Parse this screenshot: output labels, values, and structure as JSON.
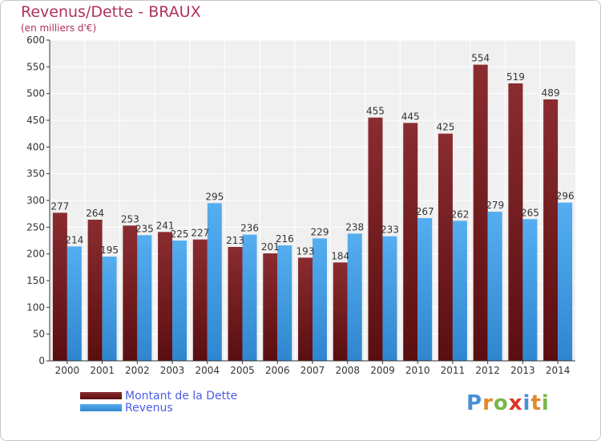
{
  "header": {
    "title": "Revenus/Dette - BRAUX",
    "subtitle": "(en milliers d'€)"
  },
  "legend": {
    "dette_label": "Montant de la Dette",
    "revenus_label": "Revenus"
  },
  "logo": {
    "text": "Proxiti",
    "letter_colors": [
      "#4a8fd6",
      "#e08a2a",
      "#7ab648",
      "#e0332a",
      "#4a8fd6",
      "#e08a2a",
      "#7ab648"
    ]
  },
  "colors": {
    "dette": "#7a1e22",
    "revenus": "#4aa0e6",
    "title": "#b0325a",
    "plot_bg": "#f0f0f0",
    "grid": "#ffffff"
  },
  "chart_data": {
    "type": "bar",
    "title": "Revenus/Dette - BRAUX",
    "ylabel": "(en milliers d'€)",
    "ylim": [
      0,
      600
    ],
    "yticks": [
      0,
      50,
      100,
      150,
      200,
      250,
      300,
      350,
      400,
      450,
      500,
      550,
      600
    ],
    "grid": true,
    "legend_position": "bottom-left",
    "categories": [
      "2000",
      "2001",
      "2002",
      "2003",
      "2004",
      "2005",
      "2006",
      "2007",
      "2008",
      "2009",
      "2010",
      "2011",
      "2012",
      "2013",
      "2014"
    ],
    "series": [
      {
        "name": "Montant de la Dette",
        "values": [
          277,
          264,
          253,
          241,
          227,
          213,
          201,
          193,
          184,
          455,
          445,
          425,
          554,
          519,
          489
        ],
        "labels": [
          "277",
          "264",
          "253",
          "241",
          "227",
          "213",
          "201",
          "193",
          "184",
          "455",
          "445",
          "425",
          "554",
          "519",
          "489"
        ]
      },
      {
        "name": "Revenus",
        "values": [
          214,
          195,
          235,
          225,
          295,
          236,
          216,
          229,
          238,
          233,
          267,
          262,
          279,
          265,
          296
        ],
        "labels": [
          "214",
          "195",
          "235",
          "225",
          "295",
          "236",
          "216",
          "229",
          "238",
          "233",
          "267",
          "262",
          "279",
          "265",
          "296"
        ]
      }
    ]
  }
}
